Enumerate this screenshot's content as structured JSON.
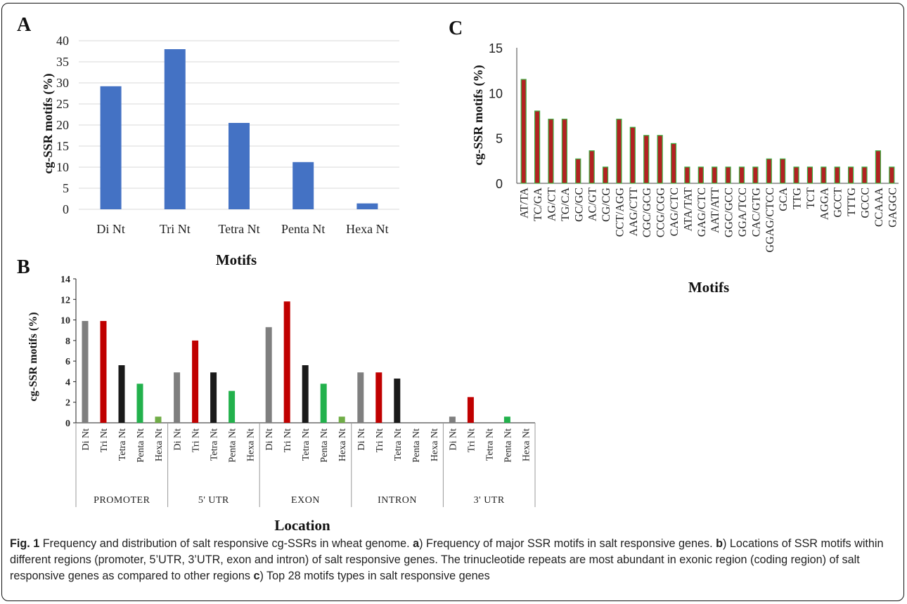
{
  "colors": {
    "panel_a_bar": "#4472c4",
    "gray": "#7f7f7f",
    "red": "#c00000",
    "black": "#1a1a1a",
    "green": "#22b14c",
    "lightgreen": "#70ad47",
    "c_bar": "#b22222",
    "c_bar_edge": "#3cb043"
  },
  "chart_data": [
    {
      "panel": "A",
      "type": "bar",
      "categories": [
        "Di  Nt",
        "Tri Nt",
        "Tetra Nt",
        "Penta Nt",
        "Hexa Nt"
      ],
      "values": [
        29.2,
        38,
        20.5,
        11.2,
        1.4
      ],
      "xlabel": "Motifs",
      "ylabel": "cg-SSR motifs (%)",
      "ylim": [
        0,
        40
      ],
      "yticks": [
        "0",
        "5",
        "10",
        "15",
        "20",
        "25",
        "30",
        "35",
        "40"
      ],
      "grid": true
    },
    {
      "panel": "B",
      "type": "bar",
      "groups": [
        "PROMOTER",
        "5' UTR",
        "EXON",
        "INTRON",
        "3' UTR"
      ],
      "categories": [
        "Di Nt",
        "Tri Nt",
        "Tetra Nt",
        "Penta Nt",
        "Hexa Nt"
      ],
      "values": [
        [
          9.9,
          9.9,
          5.6,
          3.8,
          0.6
        ],
        [
          4.9,
          8.0,
          4.9,
          3.1,
          0
        ],
        [
          9.3,
          11.8,
          5.6,
          3.8,
          0.6
        ],
        [
          4.9,
          4.9,
          4.3,
          0,
          0
        ],
        [
          0.6,
          2.5,
          0,
          0.6,
          0
        ]
      ],
      "xlabel": "Location",
      "ylabel": "cg-SSR  motifs (%)",
      "ylim": [
        0,
        14
      ],
      "yticks": [
        "0",
        "2",
        "4",
        "6",
        "8",
        "10",
        "12",
        "14"
      ],
      "grid": false
    },
    {
      "panel": "C",
      "type": "bar",
      "categories": [
        "AT/TA",
        "TC/GA",
        "AG/CT",
        "TG/CA",
        "GC/GC",
        "AC/GT",
        "CG/CG",
        "CCT/AGG",
        "AAG/CTT",
        "CGC/GCG",
        "CCG/CGG",
        "CAG/CTC",
        "ATA/TAT",
        "GAG/CTC",
        "AAT/ATT",
        "GGC/GCC",
        "GGA/TCC",
        "CAC/GTG",
        "GGAG/CTCC",
        "GCA",
        "TTG",
        "TCT",
        "AGGA",
        "GCCT",
        "TTTG",
        "GCCC",
        "CCAAA",
        "GAGGC"
      ],
      "values": [
        11.5,
        8.0,
        7.1,
        7.1,
        2.7,
        3.6,
        1.8,
        7.1,
        6.2,
        5.3,
        5.3,
        4.4,
        1.8,
        1.8,
        1.8,
        1.8,
        1.8,
        1.8,
        2.7,
        2.7,
        1.8,
        1.8,
        1.8,
        1.8,
        1.8,
        1.8,
        3.6,
        1.8
      ],
      "xlabel": "Motifs",
      "ylabel": "cg-SSR motifs (%)",
      "ylim": [
        0,
        15
      ],
      "yticks": [
        "0",
        "5",
        "10",
        "15"
      ],
      "grid": false
    }
  ],
  "panel_labels": {
    "a": "A",
    "b": "B",
    "c": "C"
  },
  "caption": {
    "fig_label": "Fig. 1",
    "title": " Frequency and distribution of salt responsive cg-SSRs in wheat genome. ",
    "a_label": "a",
    "a_text": ") Frequency of major SSR motifs in salt responsive genes. ",
    "b_label": "b",
    "b_text": ") Locations of SSR motifs within different regions (promoter, 5’UTR, 3’UTR, exon and intron) of salt responsive genes. The trinucleotide repeats are most abundant in exonic region (coding region) of salt responsive genes as compared to other regions ",
    "c_label": "c",
    "c_text": ") Top 28 motifs types in salt responsive genes"
  }
}
